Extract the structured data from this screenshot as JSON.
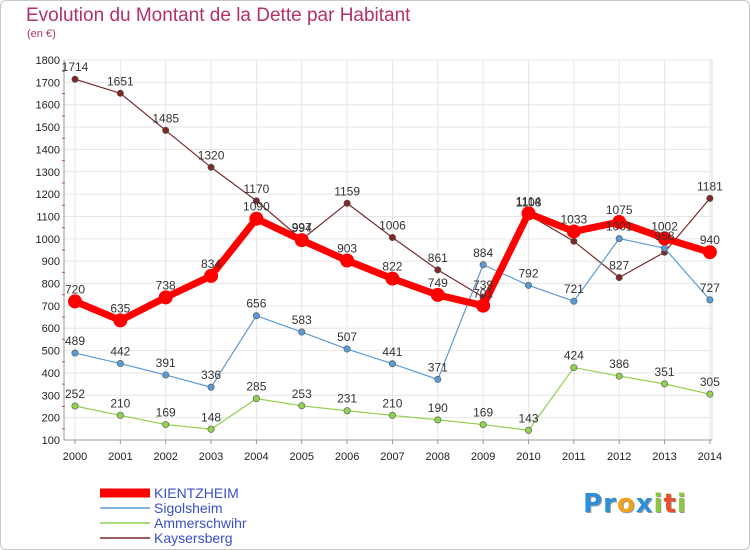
{
  "chart_data": {
    "type": "line",
    "title": "Evolution du Montant de la Dette par Habitant",
    "unit_label": "(en €)",
    "x": [
      "2000",
      "2001",
      "2002",
      "2003",
      "2004",
      "2005",
      "2006",
      "2007",
      "2008",
      "2009",
      "2010",
      "2011",
      "2012",
      "2013",
      "2014"
    ],
    "ylim": [
      100,
      1800
    ],
    "yticks": [
      100,
      200,
      300,
      400,
      500,
      600,
      700,
      800,
      900,
      1000,
      1100,
      1200,
      1300,
      1400,
      1500,
      1600,
      1700,
      1800
    ],
    "grid": true,
    "legend_placement": "bottom-left",
    "series": [
      {
        "name": "KIENTZHEIM",
        "color": "#ff0000",
        "values": [
          720,
          635,
          738,
          834,
          1090,
          994,
          903,
          822,
          749,
          701,
          1114,
          1033,
          1075,
          1002,
          940
        ],
        "labels": [
          "720",
          "635",
          "738",
          "834",
          "1090",
          "994",
          "903",
          "822",
          "749",
          "701",
          "1114",
          "1033",
          "1075",
          "1002",
          "940"
        ]
      },
      {
        "name": "Sigolsheim",
        "color": "#5b9bd5",
        "values": [
          489,
          442,
          391,
          336,
          656,
          583,
          507,
          441,
          371,
          884,
          792,
          721,
          1001,
          958,
          727
        ],
        "labels": [
          "489",
          "442",
          "391",
          "336",
          "656",
          "583",
          "507",
          "441",
          "371",
          "884",
          "792",
          "721",
          "1001",
          "958",
          "727"
        ]
      },
      {
        "name": "Ammerschwihr",
        "color": "#92d050",
        "values": [
          252,
          210,
          169,
          148,
          285,
          253,
          231,
          210,
          190,
          169,
          143,
          424,
          386,
          351,
          305
        ],
        "labels": [
          "252",
          "210",
          "169",
          "148",
          "285",
          "253",
          "231",
          "210",
          "190",
          "169",
          "143",
          "424",
          "386",
          "351",
          "305"
        ]
      },
      {
        "name": "Kaysersberg",
        "color": "#7b2a2a",
        "values": [
          1714,
          1651,
          1485,
          1320,
          1170,
          997,
          1159,
          1006,
          861,
          739,
          1108,
          989,
          827,
          940,
          1181
        ],
        "labels": [
          "1714",
          "1651",
          "1485",
          "1320",
          "1170",
          "997",
          "1159",
          "1006",
          "861",
          "739",
          "1108",
          "",
          "827",
          "",
          "1181"
        ]
      }
    ]
  },
  "logo": {
    "letters": [
      {
        "ch": "P",
        "color": "#2e8fd6"
      },
      {
        "ch": "r",
        "color": "#2e8fd6"
      },
      {
        "ch": "o",
        "color": "#f0a21a"
      },
      {
        "ch": "x",
        "color": "#2e8fd6"
      },
      {
        "ch": "i",
        "color": "#8cc63e"
      },
      {
        "ch": "t",
        "color": "#e84e2a"
      },
      {
        "ch": "i",
        "color": "#8cc63e"
      }
    ]
  }
}
